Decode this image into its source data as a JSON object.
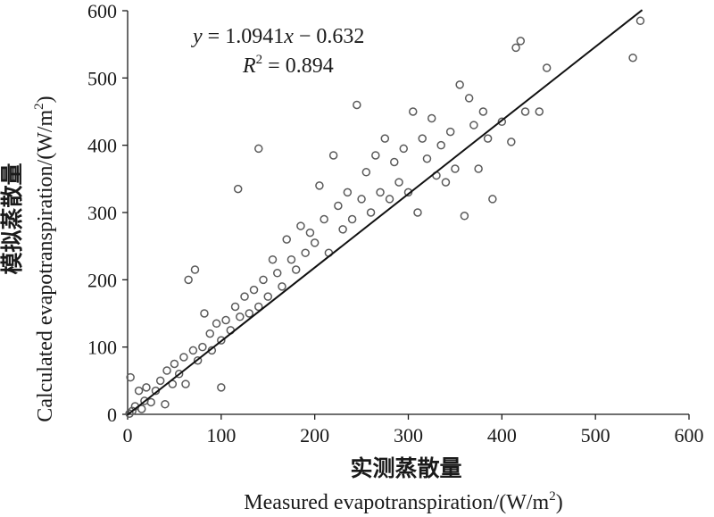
{
  "chart_data": {
    "type": "scatter",
    "xlabel_cn": "实测蒸散量",
    "xlabel_en": "Measured  evapotranspiration/(W/m",
    "xlabel_unit_sup": "2",
    "xlabel_unit_close": ")",
    "ylabel_cn": "模拟蒸散量",
    "ylabel_en": "Calculated evapotranspiration/(W/m",
    "ylabel_unit_sup": "2",
    "ylabel_unit_close": ")",
    "xlim": [
      0,
      600
    ],
    "ylim": [
      0,
      600
    ],
    "x_ticks": [
      "0",
      "100",
      "200",
      "300",
      "400",
      "500",
      "600"
    ],
    "y_ticks": [
      "0",
      "100",
      "200",
      "300",
      "400",
      "500",
      "600"
    ],
    "equation": {
      "y_var": "y",
      "eq_body": " = 1.0941",
      "x_var": "x",
      "tail": " −  0.632",
      "r_var": "R",
      "r_sup": "2",
      "r_value": " = 0.894"
    },
    "fit_line": {
      "slope": 1.0941,
      "intercept": -0.632,
      "x_range": [
        0,
        550
      ]
    },
    "points_sample": [
      [
        2,
        1
      ],
      [
        3,
        55
      ],
      [
        5,
        5
      ],
      [
        8,
        12
      ],
      [
        12,
        35
      ],
      [
        15,
        8
      ],
      [
        18,
        20
      ],
      [
        20,
        40
      ],
      [
        25,
        18
      ],
      [
        30,
        35
      ],
      [
        35,
        50
      ],
      [
        40,
        15
      ],
      [
        42,
        65
      ],
      [
        48,
        45
      ],
      [
        50,
        75
      ],
      [
        55,
        60
      ],
      [
        60,
        85
      ],
      [
        62,
        45
      ],
      [
        65,
        200
      ],
      [
        70,
        95
      ],
      [
        72,
        215
      ],
      [
        75,
        80
      ],
      [
        80,
        100
      ],
      [
        82,
        150
      ],
      [
        88,
        120
      ],
      [
        90,
        95
      ],
      [
        95,
        135
      ],
      [
        100,
        110
      ],
      [
        100,
        40
      ],
      [
        105,
        140
      ],
      [
        110,
        125
      ],
      [
        115,
        160
      ],
      [
        118,
        335
      ],
      [
        120,
        145
      ],
      [
        125,
        175
      ],
      [
        130,
        150
      ],
      [
        135,
        185
      ],
      [
        140,
        395
      ],
      [
        140,
        160
      ],
      [
        145,
        200
      ],
      [
        150,
        175
      ],
      [
        155,
        230
      ],
      [
        160,
        210
      ],
      [
        165,
        190
      ],
      [
        170,
        260
      ],
      [
        175,
        230
      ],
      [
        180,
        215
      ],
      [
        185,
        280
      ],
      [
        190,
        240
      ],
      [
        195,
        270
      ],
      [
        200,
        255
      ],
      [
        205,
        340
      ],
      [
        210,
        290
      ],
      [
        215,
        240
      ],
      [
        220,
        385
      ],
      [
        225,
        310
      ],
      [
        230,
        275
      ],
      [
        235,
        330
      ],
      [
        240,
        290
      ],
      [
        245,
        460
      ],
      [
        250,
        320
      ],
      [
        255,
        360
      ],
      [
        260,
        300
      ],
      [
        265,
        385
      ],
      [
        270,
        330
      ],
      [
        275,
        410
      ],
      [
        280,
        320
      ],
      [
        285,
        375
      ],
      [
        290,
        345
      ],
      [
        295,
        395
      ],
      [
        300,
        330
      ],
      [
        305,
        450
      ],
      [
        310,
        300
      ],
      [
        315,
        410
      ],
      [
        320,
        380
      ],
      [
        325,
        440
      ],
      [
        330,
        355
      ],
      [
        335,
        400
      ],
      [
        340,
        345
      ],
      [
        345,
        420
      ],
      [
        350,
        365
      ],
      [
        355,
        490
      ],
      [
        360,
        295
      ],
      [
        365,
        470
      ],
      [
        370,
        430
      ],
      [
        375,
        365
      ],
      [
        380,
        450
      ],
      [
        385,
        410
      ],
      [
        390,
        320
      ],
      [
        400,
        435
      ],
      [
        410,
        405
      ],
      [
        415,
        545
      ],
      [
        420,
        555
      ],
      [
        425,
        450
      ],
      [
        440,
        450
      ],
      [
        448,
        515
      ],
      [
        540,
        530
      ],
      [
        548,
        585
      ]
    ]
  }
}
